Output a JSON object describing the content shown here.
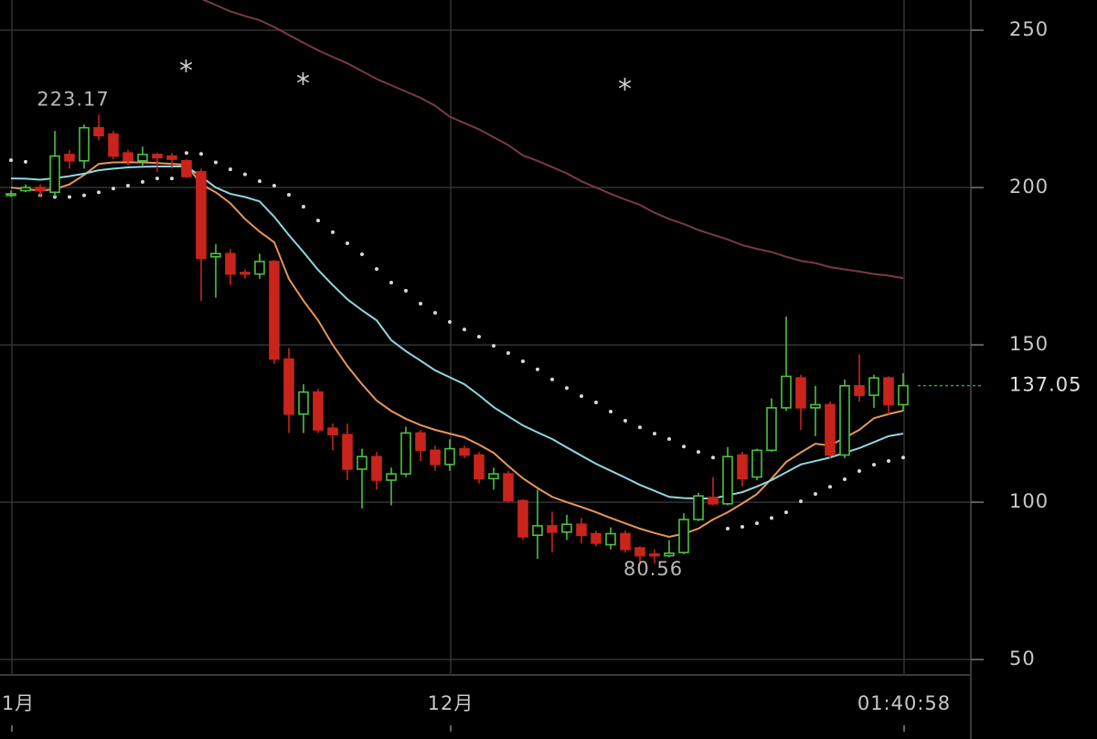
{
  "chart_data": {
    "type": "candlestick",
    "categories": [
      "1月",
      null,
      null,
      null,
      null,
      null,
      null,
      null,
      null,
      null,
      null,
      null,
      null,
      null,
      null,
      null,
      null,
      null,
      null,
      null,
      null,
      null,
      null,
      null,
      null,
      null,
      null,
      null,
      null,
      null,
      "12月",
      null,
      null,
      null,
      null,
      null,
      null,
      null,
      null,
      null,
      null,
      null,
      null,
      null,
      null,
      null,
      null,
      null,
      null,
      null,
      null,
      null,
      null,
      null,
      null,
      null,
      null,
      null,
      null,
      null,
      null,
      "01:40:58"
    ],
    "open": [
      197.5,
      199,
      200,
      198.5,
      210.5,
      208.5,
      219,
      217,
      211,
      208.5,
      210.5,
      210,
      208.5,
      205,
      178,
      179,
      173,
      172.5,
      176.5,
      145.5,
      128,
      135,
      123.5,
      121.5,
      110.5,
      114.5,
      107,
      109,
      122,
      116.5,
      112,
      117,
      115,
      107.5,
      109,
      100.5,
      89.5,
      92.5,
      90.5,
      93,
      90,
      86.5,
      90,
      85.5,
      83.5,
      83,
      84,
      94.5,
      101.5,
      99.5,
      115,
      108,
      116.5,
      130,
      139.5,
      130,
      131,
      115,
      137,
      134,
      139.5,
      131
    ],
    "high": [
      199,
      201,
      201,
      218,
      212,
      220,
      223.17,
      218,
      212,
      213,
      211,
      211,
      209,
      206,
      182,
      180.5,
      174,
      179,
      177,
      149,
      137.5,
      136,
      125,
      125,
      117,
      116,
      111,
      124,
      123,
      118,
      120,
      118,
      116,
      111,
      110,
      101,
      104,
      97,
      96,
      95,
      91,
      92,
      91,
      86,
      85,
      88,
      96.5,
      103,
      108,
      117.5,
      116,
      117,
      133,
      159,
      140.5,
      137,
      132,
      139,
      147,
      140.5,
      140,
      141
    ],
    "low": [
      197,
      198.5,
      197,
      197,
      206,
      206,
      215,
      209,
      207,
      207,
      205,
      206,
      203,
      164,
      165,
      169,
      171,
      171,
      144,
      122,
      122,
      122,
      116.5,
      107,
      98,
      104,
      99,
      108,
      113,
      110,
      110,
      114,
      106,
      104,
      100,
      88,
      82,
      84,
      88,
      87,
      86,
      85,
      84,
      81,
      80.56,
      82.5,
      83.5,
      94,
      99,
      99,
      105,
      107,
      116,
      129,
      123,
      121,
      114,
      114,
      132,
      130,
      128,
      129
    ],
    "close": [
      198,
      200,
      199,
      210,
      208.5,
      219,
      216.5,
      210,
      208.5,
      210.5,
      209.5,
      209,
      203.5,
      177.5,
      179,
      172.5,
      172.5,
      176.5,
      145.5,
      128,
      135,
      123,
      121.5,
      110.5,
      114.5,
      107,
      109,
      122,
      116.5,
      112,
      117,
      115,
      107.5,
      109,
      100.5,
      89,
      92.5,
      90.5,
      93,
      89.5,
      87,
      90,
      85,
      83,
      83,
      83.8,
      94.5,
      102,
      99.5,
      114.5,
      107.5,
      116.5,
      130,
      140,
      130,
      131,
      115,
      137,
      134,
      139.5,
      131,
      137.05
    ],
    "up_color": "#4cc23f",
    "down_color": "#c8241c",
    "series": [
      {
        "style": "line",
        "color": "#e8955a",
        "values": [
          200,
          199.5,
          199,
          199.5,
          201,
          204,
          207.5,
          208,
          208,
          208,
          207.8,
          207.5,
          207.3,
          201,
          198.5,
          195,
          190,
          186,
          182.6,
          171,
          164,
          157.8,
          150,
          143.3,
          137.5,
          132.3,
          129,
          126.5,
          124.5,
          123,
          121.8,
          120.6,
          118.3,
          115.7,
          111.5,
          107.6,
          104.5,
          101.7,
          100,
          98.5,
          96.8,
          95,
          93.3,
          91.6,
          90.2,
          89,
          90,
          91.6,
          94.5,
          96.8,
          99.6,
          102.6,
          107.5,
          112.8,
          115.8,
          118.6,
          118,
          120.5,
          123,
          126.7,
          128,
          129.1
        ]
      },
      {
        "style": "line",
        "color": "#8fd8e0",
        "values": [
          202.9,
          202.8,
          202.5,
          203,
          203.6,
          204.4,
          205.5,
          206,
          206.4,
          206.6,
          206.7,
          206.7,
          206.7,
          203.5,
          200,
          198,
          197,
          195.6,
          190.7,
          184.9,
          179.5,
          173.8,
          169,
          164.5,
          161,
          157.8,
          151.5,
          148,
          145,
          141.9,
          139.7,
          137.5,
          134,
          130.2,
          127.3,
          124.4,
          122.2,
          120.1,
          117.4,
          114.8,
          112.2,
          110,
          107.8,
          105.5,
          103.6,
          101.7,
          101.3,
          101.2,
          101.2,
          102.2,
          103.2,
          105,
          107,
          109.5,
          112,
          113.1,
          114.2,
          115.7,
          117.2,
          119.1,
          121,
          121.8
        ]
      },
      {
        "style": "line",
        "color": "#7a3a44",
        "values": [
          null,
          null,
          null,
          null,
          null,
          null,
          null,
          null,
          null,
          null,
          null,
          null,
          null,
          260,
          258,
          256,
          254.5,
          253.2,
          251,
          248.5,
          246,
          243.6,
          241.5,
          239.5,
          237,
          234.5,
          232.5,
          230.5,
          228.5,
          226,
          222.5,
          220.5,
          218.5,
          216,
          213.5,
          210.2,
          208.5,
          206.5,
          204.5,
          202,
          200,
          198,
          196.2,
          194.5,
          192,
          190,
          188.4,
          186.5,
          185,
          183.5,
          181.7,
          180.5,
          179.5,
          178,
          176.7,
          176,
          174.7,
          174,
          173.3,
          172.5,
          172,
          171.2
        ]
      },
      {
        "style": "dots",
        "color": "#d8d8d8",
        "values": [
          208.7,
          208.2,
          197.5,
          197,
          197,
          197.5,
          198.5,
          199.7,
          200.6,
          201.8,
          202.9,
          202.9,
          211,
          210.7,
          208,
          205.8,
          204.2,
          202,
          200.6,
          197.7,
          193.9,
          189.5,
          185.8,
          182.3,
          178.8,
          174.1,
          169.8,
          167.2,
          163.1,
          160.2,
          157.3,
          154.9,
          152.6,
          149.7,
          147.4,
          144.8,
          142.2,
          139,
          136.3,
          133.7,
          131.7,
          128.8,
          125.9,
          123.8,
          121.8,
          120.1,
          117.7,
          116,
          114.2,
          91.6,
          92.2,
          93.3,
          95,
          96.8,
          100.3,
          102.6,
          104.9,
          107.3,
          109.9,
          111.9,
          113.1,
          114.2
        ]
      }
    ],
    "annotations": [
      {
        "index": 6,
        "value": 223.17
      },
      {
        "index": 44,
        "value": 80.56
      }
    ],
    "markers": [
      {
        "index": 12,
        "value": 238.4,
        "label": "*"
      },
      {
        "index": 20,
        "value": 234.3,
        "label": "*"
      },
      {
        "index": 42,
        "value": 232.6,
        "label": "*"
      }
    ],
    "last_price": 137.05,
    "last_price_color": "#3c9a3c",
    "ylim": [
      45.1,
      259.6
    ],
    "yticks": [
      50,
      100,
      150,
      200,
      250
    ],
    "grid": true
  }
}
